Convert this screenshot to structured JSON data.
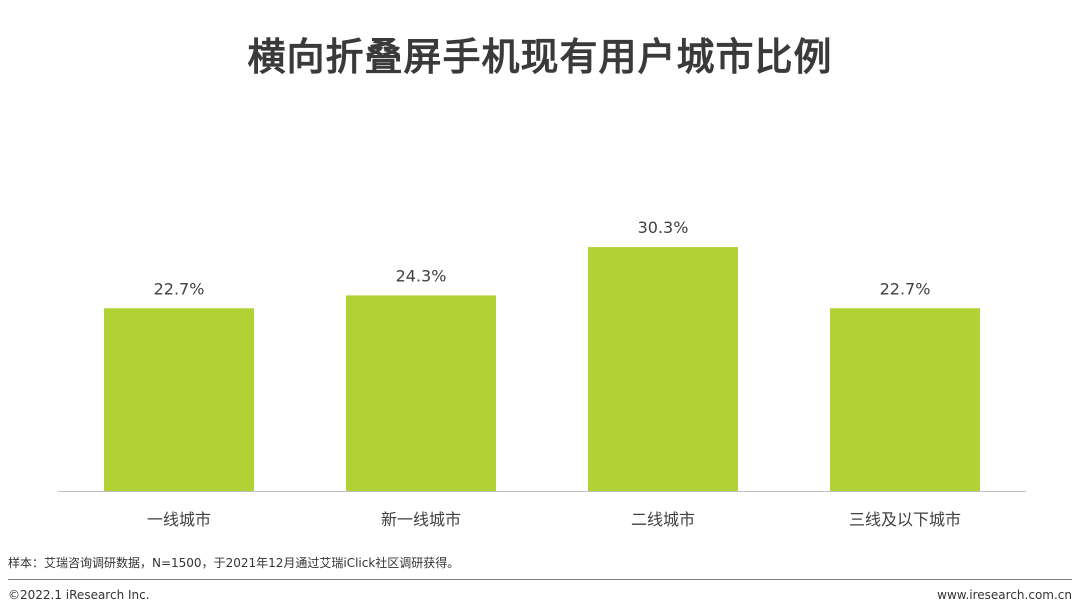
{
  "page": {
    "title": "横向折叠屏手机现有用户城市比例",
    "note": "样本：艾瑞咨询调研数据，N=1500，于2021年12月通过艾瑞iClick社区调研获得。",
    "copyright": "©2022.1 iResearch Inc.",
    "website": "www.iresearch.com.cn"
  },
  "colors": {
    "bar": "#b0d234",
    "axis": "#bfbfbf",
    "text": "#404040"
  },
  "chart_data": {
    "type": "bar",
    "title": "横向折叠屏手机现有用户城市比例",
    "categories": [
      "一线城市",
      "新一线城市",
      "二线城市",
      "三线及以下城市"
    ],
    "values": [
      22.7,
      24.3,
      30.3,
      22.7
    ],
    "data_labels": [
      "22.7%",
      "24.3%",
      "30.3%",
      "22.7%"
    ],
    "unit": "%",
    "xlabel": "",
    "ylabel": "",
    "grid": false,
    "legend": "none"
  }
}
